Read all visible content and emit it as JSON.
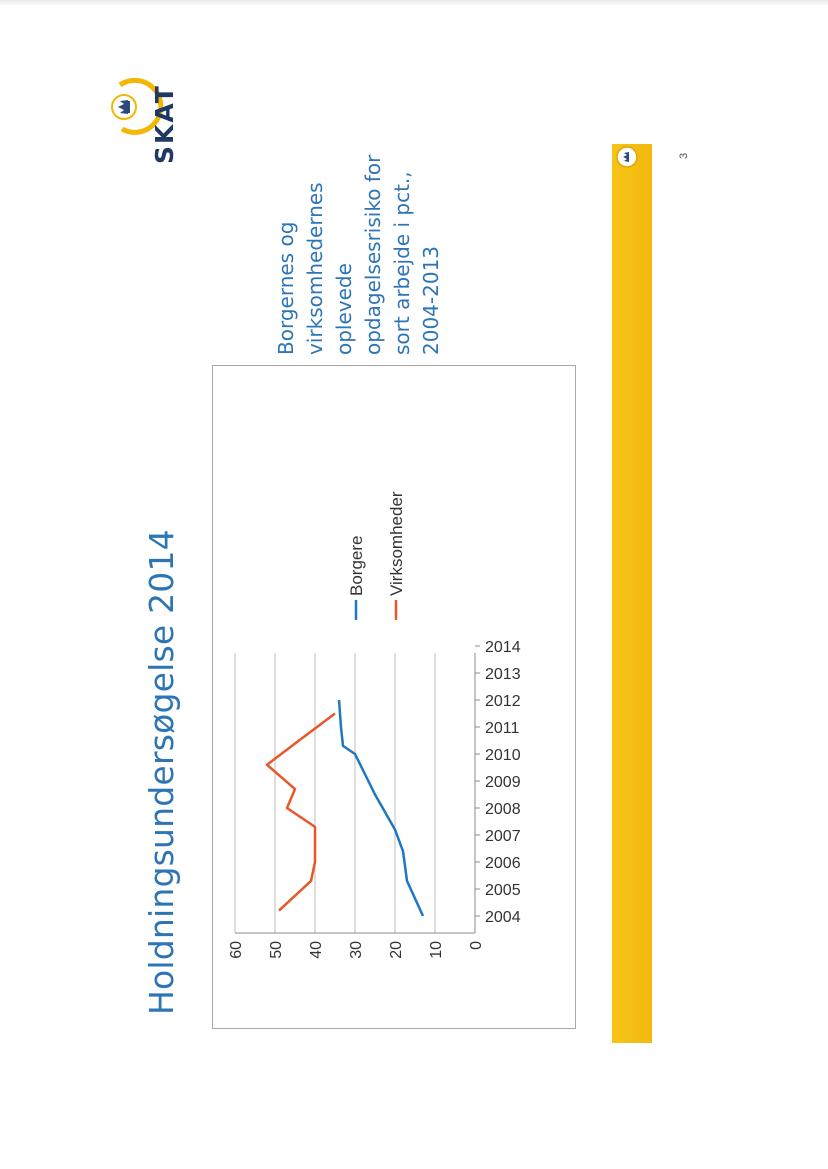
{
  "slide": {
    "title": "Holdningsundersøgelse 2014",
    "caption_lines": [
      "Borgernes og",
      "virksomhedernes",
      "oplevede",
      "opdagelsesrisiko for",
      "sort arbejde i pct.,",
      "2004-2013"
    ],
    "logo_text": "SKAT",
    "page_number": "3",
    "colors": {
      "title": "#2e75b6",
      "bar": "#f4be12"
    }
  },
  "chart_data": {
    "type": "line",
    "categories": [
      "2004",
      "2005",
      "2006",
      "2007",
      "2008",
      "2009",
      "2010",
      "2011",
      "2012",
      "2013",
      "2014"
    ],
    "ylim": [
      0,
      60
    ],
    "yticks": [
      "0",
      "10",
      "20",
      "30",
      "40",
      "50",
      "60"
    ],
    "grid": true,
    "legend_position": "right",
    "series": [
      {
        "name": "Borgere",
        "color": "#1f77c4",
        "points": [
          [
            2004,
            13
          ],
          [
            2005.3,
            17
          ],
          [
            2006.4,
            18
          ],
          [
            2007.2,
            20
          ],
          [
            2008.5,
            25
          ],
          [
            2010,
            30
          ],
          [
            2010.3,
            33
          ],
          [
            2011,
            33.5
          ],
          [
            2012,
            34
          ]
        ]
      },
      {
        "name": "Virksomheder",
        "color": "#e8562a",
        "points": [
          [
            2004.2,
            49
          ],
          [
            2005.3,
            41
          ],
          [
            2006,
            40
          ],
          [
            2007,
            40
          ],
          [
            2007.3,
            40
          ],
          [
            2008,
            47
          ],
          [
            2008.7,
            45
          ],
          [
            2009.6,
            52
          ],
          [
            2010.5,
            44
          ],
          [
            2011.5,
            35
          ]
        ]
      }
    ]
  }
}
